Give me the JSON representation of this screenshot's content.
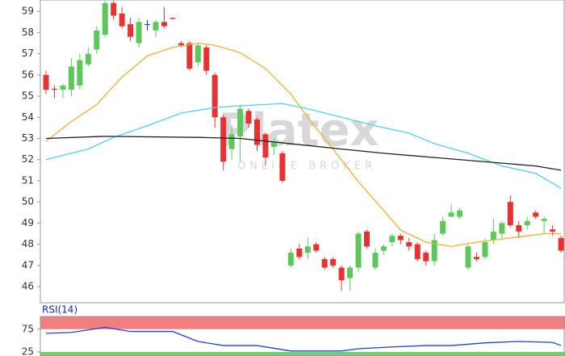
{
  "chart_data": [
    {
      "type": "candlestick",
      "watermark": "Platex",
      "watermark_sub": "ONLINE BROKER",
      "xlim": [
        -0.67,
        61.47
      ],
      "ylim": [
        45.24,
        59.54
      ],
      "yticks": [
        46,
        47,
        48,
        49,
        50,
        51,
        52,
        53,
        54,
        55,
        56,
        57,
        58,
        59
      ],
      "up_color": "#5cc85c",
      "down_color": "#e83232",
      "doji_color": "#3030c0",
      "open": [
        56.0,
        55.35,
        55.3,
        55.3,
        55.5,
        56.5,
        57.2,
        57.9,
        59.4,
        58.9,
        58.4,
        57.5,
        58.4,
        58.1,
        58.5,
        58.7,
        57.5,
        57.5,
        56.6,
        57.3,
        56.0,
        54.0,
        52.5,
        53.1,
        54.3,
        53.9,
        53.2,
        52.6,
        52.3,
        47.0,
        47.8,
        47.6,
        48.0,
        47.3,
        47.3,
        46.9,
        46.4,
        46.9,
        48.6,
        46.9,
        47.7,
        48.1,
        48.4,
        48.1,
        48.0,
        47.6,
        47.2,
        48.5,
        49.3,
        49.3,
        46.9,
        47.4,
        47.4,
        48.2,
        48.5,
        50.0,
        48.9,
        48.9,
        49.5,
        49.1,
        48.7,
        48.3
      ],
      "high": [
        56.2,
        55.5,
        55.6,
        56.8,
        57.0,
        57.3,
        58.3,
        59.5,
        59.5,
        59.2,
        58.7,
        58.7,
        58.6,
        58.6,
        59.2,
        58.7,
        57.6,
        57.6,
        57.5,
        57.4,
        56.1,
        54.1,
        53.6,
        54.6,
        54.4,
        54.0,
        53.3,
        53.0,
        52.4,
        47.8,
        48.0,
        48.3,
        48.1,
        47.4,
        47.4,
        47.0,
        47.0,
        48.6,
        48.7,
        47.8,
        48.0,
        48.5,
        48.5,
        48.3,
        48.1,
        47.7,
        48.5,
        49.3,
        49.9,
        49.7,
        48.0,
        47.6,
        48.3,
        49.2,
        49.1,
        50.3,
        49.1,
        49.3,
        49.6,
        49.3,
        48.9,
        48.4
      ],
      "low": [
        55.1,
        54.9,
        54.9,
        55.0,
        55.3,
        56.4,
        57.0,
        57.8,
        58.6,
        58.2,
        57.6,
        57.3,
        58.1,
        57.8,
        58.2,
        58.6,
        57.3,
        56.2,
        56.4,
        56.0,
        53.5,
        51.5,
        52.0,
        51.9,
        53.5,
        52.4,
        51.7,
        52.2,
        50.9,
        46.9,
        47.3,
        47.3,
        47.6,
        46.8,
        46.9,
        45.8,
        45.8,
        46.7,
        47.8,
        46.8,
        47.5,
        47.9,
        48.0,
        47.7,
        47.2,
        47.0,
        47.0,
        48.4,
        49.3,
        49.2,
        46.8,
        47.2,
        47.3,
        48.0,
        48.2,
        48.8,
        48.3,
        48.7,
        49.2,
        48.5,
        48.4,
        47.6
      ],
      "close": [
        55.3,
        55.3,
        55.5,
        56.4,
        56.7,
        57.0,
        58.1,
        59.4,
        58.8,
        58.3,
        57.8,
        58.5,
        58.4,
        58.5,
        58.3,
        58.65,
        57.4,
        56.3,
        57.4,
        56.2,
        54.0,
        51.9,
        53.2,
        54.4,
        53.7,
        52.7,
        52.1,
        52.8,
        51.0,
        47.6,
        47.4,
        47.9,
        47.7,
        46.9,
        47.0,
        46.3,
        46.9,
        48.5,
        47.9,
        47.6,
        47.9,
        48.4,
        48.2,
        47.9,
        47.3,
        47.2,
        48.2,
        49.1,
        49.5,
        49.6,
        47.9,
        47.3,
        48.1,
        48.6,
        49.0,
        48.9,
        48.6,
        49.1,
        49.3,
        49.2,
        48.6,
        47.7
      ],
      "lines": [
        {
          "color": "#f0b030",
          "x": [
            0,
            3,
            6,
            9,
            12,
            15,
            18,
            20,
            23,
            26,
            29,
            31,
            34,
            37,
            40,
            42,
            45,
            48,
            51,
            55,
            59,
            61
          ],
          "values": [
            52.86,
            53.8,
            54.6,
            55.9,
            56.9,
            57.3,
            57.5,
            57.4,
            57.05,
            56.3,
            55.1,
            54.0,
            52.5,
            50.95,
            49.6,
            48.67,
            48.1,
            47.9,
            48.1,
            48.3,
            48.5,
            48.5
          ]
        },
        {
          "color": "#50d0f0",
          "x": [
            0,
            5,
            8,
            12,
            16,
            20,
            23,
            28,
            31,
            35,
            39,
            43,
            46,
            50,
            54,
            58,
            61
          ],
          "values": [
            52.0,
            52.5,
            53.05,
            53.6,
            54.2,
            54.46,
            54.54,
            54.65,
            54.4,
            54.0,
            53.6,
            53.25,
            52.75,
            52.3,
            51.7,
            51.35,
            50.65
          ]
        },
        {
          "color": "#202020",
          "x": [
            0,
            7,
            18,
            23,
            29,
            35,
            40,
            46,
            52,
            58,
            61
          ],
          "values": [
            53.0,
            53.1,
            53.05,
            53.0,
            52.75,
            52.5,
            52.3,
            52.1,
            51.9,
            51.7,
            51.5
          ]
        }
      ]
    },
    {
      "type": "line",
      "title": "RSI(14)",
      "xlim": [
        -0.67,
        61.47
      ],
      "ylim": [
        16,
        103
      ],
      "yticks": [
        25,
        75
      ],
      "upper_band": 75,
      "lower_band": 25,
      "upper_color": "#f08080",
      "lower_color": "#70d070",
      "series": [
        {
          "color": "#2040e0",
          "x": [
            0,
            3,
            7,
            10,
            15,
            18,
            21,
            25,
            29,
            35,
            37,
            41,
            45,
            48,
            52,
            56,
            60,
            61
          ],
          "values": [
            66,
            68,
            79,
            70,
            70,
            48,
            39,
            39,
            27,
            27,
            32,
            36,
            39,
            39,
            45,
            48,
            46,
            39
          ]
        }
      ]
    }
  ]
}
